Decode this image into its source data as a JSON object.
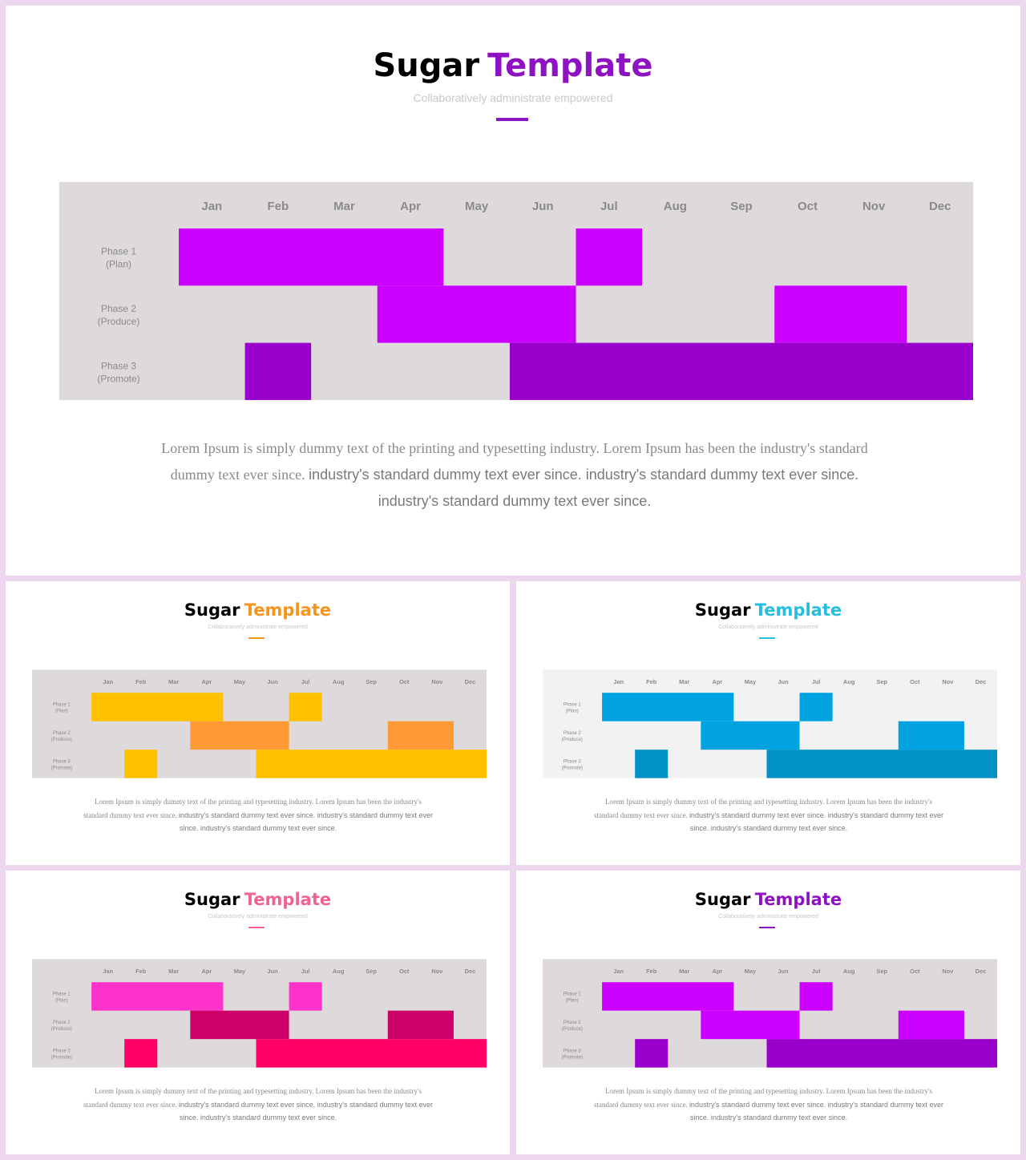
{
  "months": [
    "Jan",
    "Feb",
    "Mar",
    "Apr",
    "May",
    "Jun",
    "Jul",
    "Aug",
    "Sep",
    "Oct",
    "Nov",
    "Dec"
  ],
  "phases": [
    {
      "line1": "Phase 1",
      "line2": "(Plan)"
    },
    {
      "line1": "Phase 2",
      "line2": "(Produce)"
    },
    {
      "line1": "Phase 3",
      "line2": "(Promote)"
    }
  ],
  "chart_data": {
    "type": "heatmap",
    "x": [
      "Jan",
      "Feb",
      "Mar",
      "Apr",
      "May",
      "Jun",
      "Jul",
      "Aug",
      "Sep",
      "Oct",
      "Nov",
      "Dec"
    ],
    "y": [
      "Phase 1 (Plan)",
      "Phase 2 (Produce)",
      "Phase 3 (Promote)"
    ],
    "schedule": [
      {
        "phase": "Phase 1 (Plan)",
        "start_month": "Jan",
        "end_month": "Apr"
      },
      {
        "phase": "Phase 1 (Plan)",
        "start_month": "Jul",
        "end_month": "Jul"
      },
      {
        "phase": "Phase 2 (Produce)",
        "start_month": "Apr",
        "end_month": "Jun"
      },
      {
        "phase": "Phase 2 (Produce)",
        "start_month": "Oct",
        "end_month": "Nov"
      },
      {
        "phase": "Phase 3 (Promote)",
        "start_month": "Feb",
        "end_month": "Feb"
      },
      {
        "phase": "Phase 3 (Promote)",
        "start_month": "Jun",
        "end_month": "Dec"
      }
    ]
  },
  "slides": [
    {
      "title_main": "Sugar",
      "title_accent": "Template",
      "subtitle": "Collaboratively administrate empowered",
      "body_lead": "Lorem Ipsum is simply dummy text of the printing and typesetting industry.  Lorem Ipsum has been the industry's standard dummy text ever since. ",
      "body_tail": "industry's standard dummy text ever since. industry's standard dummy text ever since. industry's standard dummy text ever since.",
      "colors": {
        "accent": "#8e12c2",
        "chart_bg": "#dedadb",
        "phase1": "#cc00ff",
        "phase2": "#cc00ff",
        "phase3": "#9900cc"
      }
    },
    {
      "title_main": "Sugar",
      "title_accent": "Template",
      "subtitle": "Collaboratively administrate empowered",
      "body_lead": "Lorem Ipsum is simply dummy text of the printing and typesetting industry.  Lorem Ipsum has been the industry's standard dummy text ever since. ",
      "body_tail": "industry's standard dummy text ever since. industry's standard dummy text ever since. industry's standard dummy text ever since.",
      "colors": {
        "accent": "#f7941d",
        "chart_bg": "#dedadb",
        "phase1": "#ffc000",
        "phase2": "#ff9933",
        "phase3": "#ffc000"
      }
    },
    {
      "title_main": "Sugar",
      "title_accent": "Template",
      "subtitle": "Collaboratively administrate empowered",
      "body_lead": "Lorem Ipsum is simply dummy text of the printing and typesetting industry.  Lorem Ipsum has been the industry's standard dummy text ever since. ",
      "body_tail": "industry's standard dummy text ever since. industry's standard dummy text ever since. industry's standard dummy text ever since.",
      "colors": {
        "accent": "#26bde2",
        "chart_bg": "#f2f2f2",
        "phase1": "#00a3e0",
        "phase2": "#00a3e0",
        "phase3": "#0091c7"
      }
    },
    {
      "title_main": "Sugar",
      "title_accent": "Template",
      "subtitle": "Collaboratively administrate empowered",
      "body_lead": "Lorem Ipsum is simply dummy text of the printing and typesetting industry.  Lorem Ipsum has been the industry's standard dummy text ever since. ",
      "body_tail": "industry's standard dummy text ever since. industry's standard dummy text ever since. industry's standard dummy text ever since.",
      "colors": {
        "accent": "#f06292",
        "chart_bg": "#dedadb",
        "phase1": "#ff33cc",
        "phase2": "#cc0066",
        "phase3": "#ff0066"
      }
    },
    {
      "title_main": "Sugar",
      "title_accent": "Template",
      "subtitle": "Collaboratively administrate empowered",
      "body_lead": "Lorem Ipsum is simply dummy text of the printing and typesetting industry.  Lorem Ipsum has been the industry's standard dummy text ever since. ",
      "body_tail": "industry's standard dummy text ever since. industry's standard dummy text ever since. industry's standard dummy text ever since.",
      "colors": {
        "accent": "#8e12c2",
        "chart_bg": "#dedadb",
        "phase1": "#cc00ff",
        "phase2": "#cc00ff",
        "phase3": "#9900cc"
      }
    }
  ]
}
